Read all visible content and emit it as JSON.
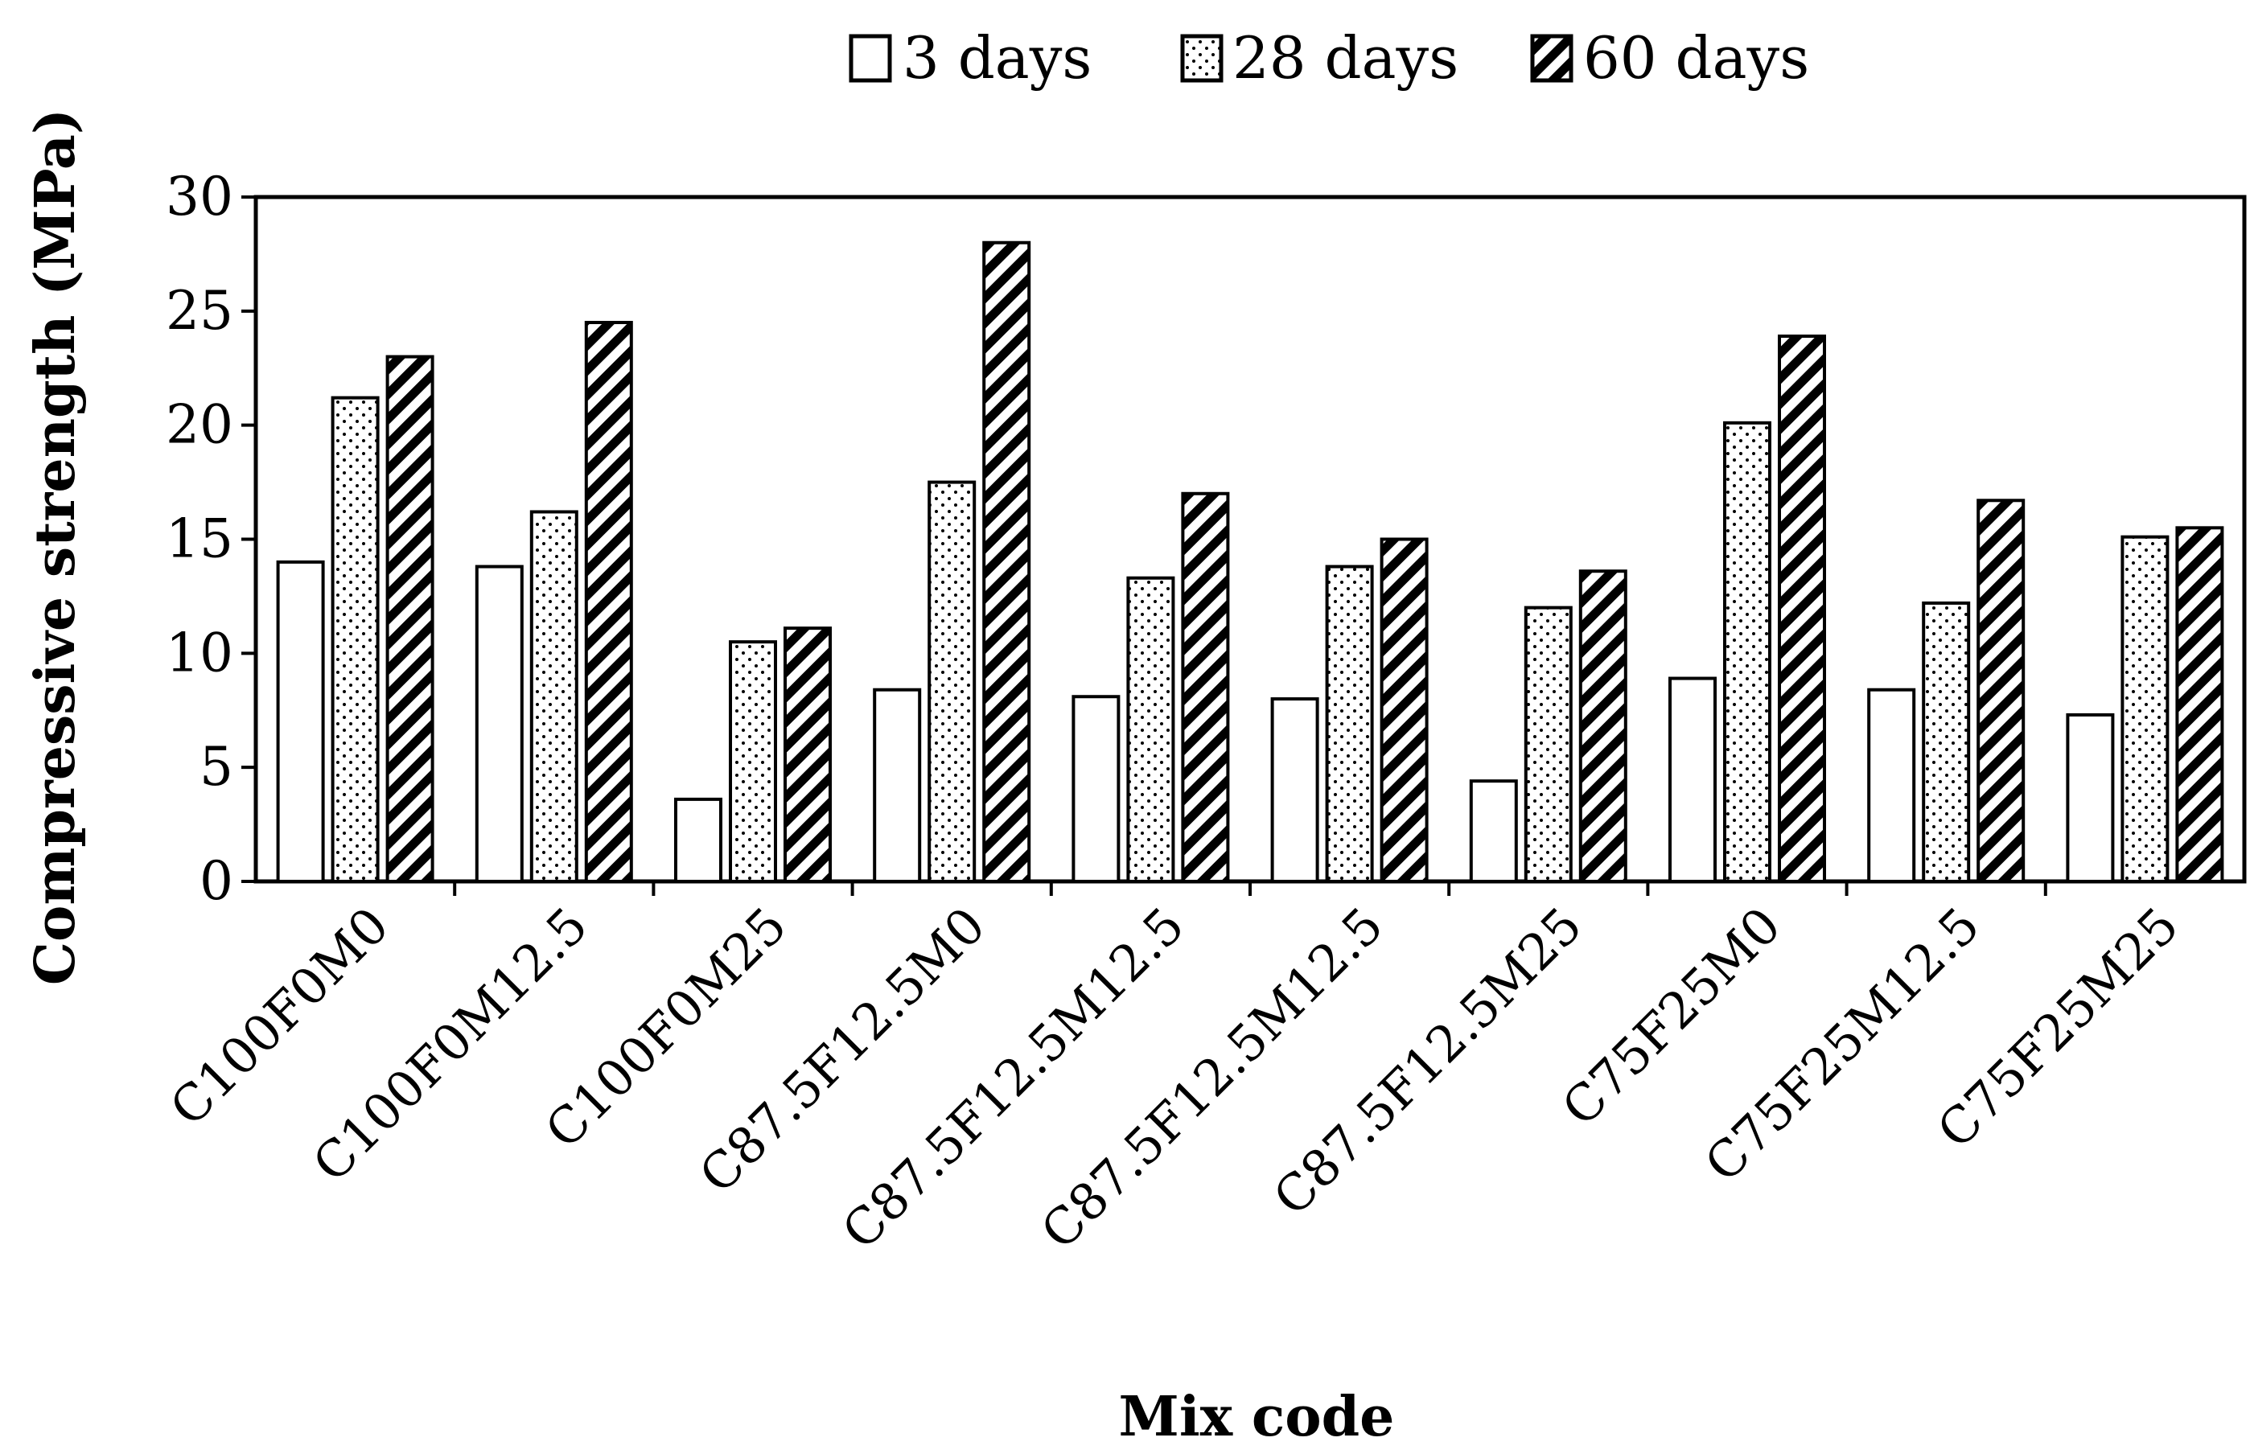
{
  "chart_data": {
    "type": "bar",
    "title": "",
    "xlabel": "Mix code",
    "ylabel": "Compressive strength (MPa)",
    "ylim": [
      0,
      30
    ],
    "yticks": [
      0,
      5,
      10,
      15,
      20,
      25,
      30
    ],
    "grid": false,
    "legend_position": "top-center",
    "categories": [
      "C100F0M0",
      "C100F0M12.5",
      "C100F0M25",
      "C87.5F12.5M0",
      "C87.5F12.5M12.5",
      "C87.5F12.5M12.5",
      "C87.5F12.5M25",
      "C75F25M0",
      "C75F25M12.5",
      "C75F25M25"
    ],
    "series": [
      {
        "name": "3 days",
        "pattern": "solid-white",
        "values": [
          14.0,
          13.8,
          3.6,
          8.4,
          8.1,
          8.0,
          4.4,
          8.9,
          8.4,
          7.3
        ]
      },
      {
        "name": "28 days",
        "pattern": "dots",
        "values": [
          21.2,
          16.2,
          10.5,
          17.5,
          13.3,
          13.8,
          12.0,
          20.1,
          12.2,
          15.1
        ]
      },
      {
        "name": "60 days",
        "pattern": "diagonal-hatch",
        "values": [
          23.0,
          24.5,
          11.1,
          28.0,
          17.0,
          15.0,
          13.6,
          23.9,
          16.7,
          15.5
        ]
      }
    ],
    "colors": {
      "stroke": "#000000",
      "fill": "#ffffff"
    }
  }
}
